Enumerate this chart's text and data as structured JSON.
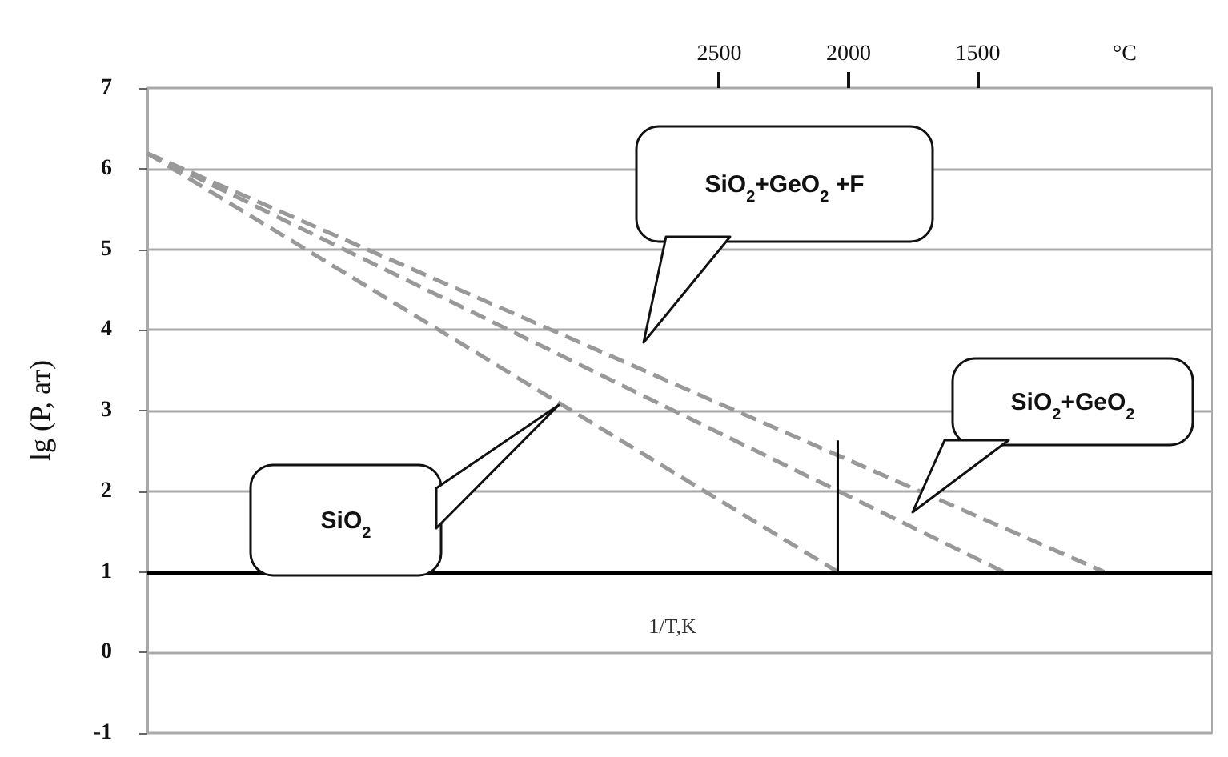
{
  "chart_data": {
    "type": "line",
    "xlabel": "°C",
    "ylabel": "lg (P, ат)",
    "xlim": [
      4711,
      595
    ],
    "xticks": [
      2500,
      2000,
      1500
    ],
    "ylim": [
      -1,
      7
    ],
    "yticks": [
      -1,
      0,
      1,
      2,
      3,
      4,
      5,
      6,
      7
    ],
    "grid": "y",
    "marker": "none",
    "series": [
      {
        "color": "#999999",
        "line_style": "dashed",
        "x": [
          4711,
          2042
        ],
        "values": [
          6.19,
          1
        ]
      },
      {
        "color": "#999999",
        "line_style": "dashed",
        "x": [
          4711,
          1401
        ],
        "values": [
          6.19,
          1
        ]
      },
      {
        "color": "#999999",
        "line_style": "dashed",
        "x": [
          4711,
          1012
        ],
        "values": [
          6.19,
          1
        ]
      },
      {
        "color": "#000000",
        "line_style": "solid",
        "x": [
          2042,
          2042
        ],
        "values": [
          1,
          2.63
        ]
      }
    ],
    "ref_lines": [
      {
        "axis": "y",
        "value": 1,
        "color": "#000000"
      }
    ],
    "annotations": [
      "SiO$_{2}$+GeO$_{2}$ +F",
      "SiO$_{2}$+GeO$_{2}$",
      "SiO$_{2}$",
      "1/T,K"
    ]
  }
}
